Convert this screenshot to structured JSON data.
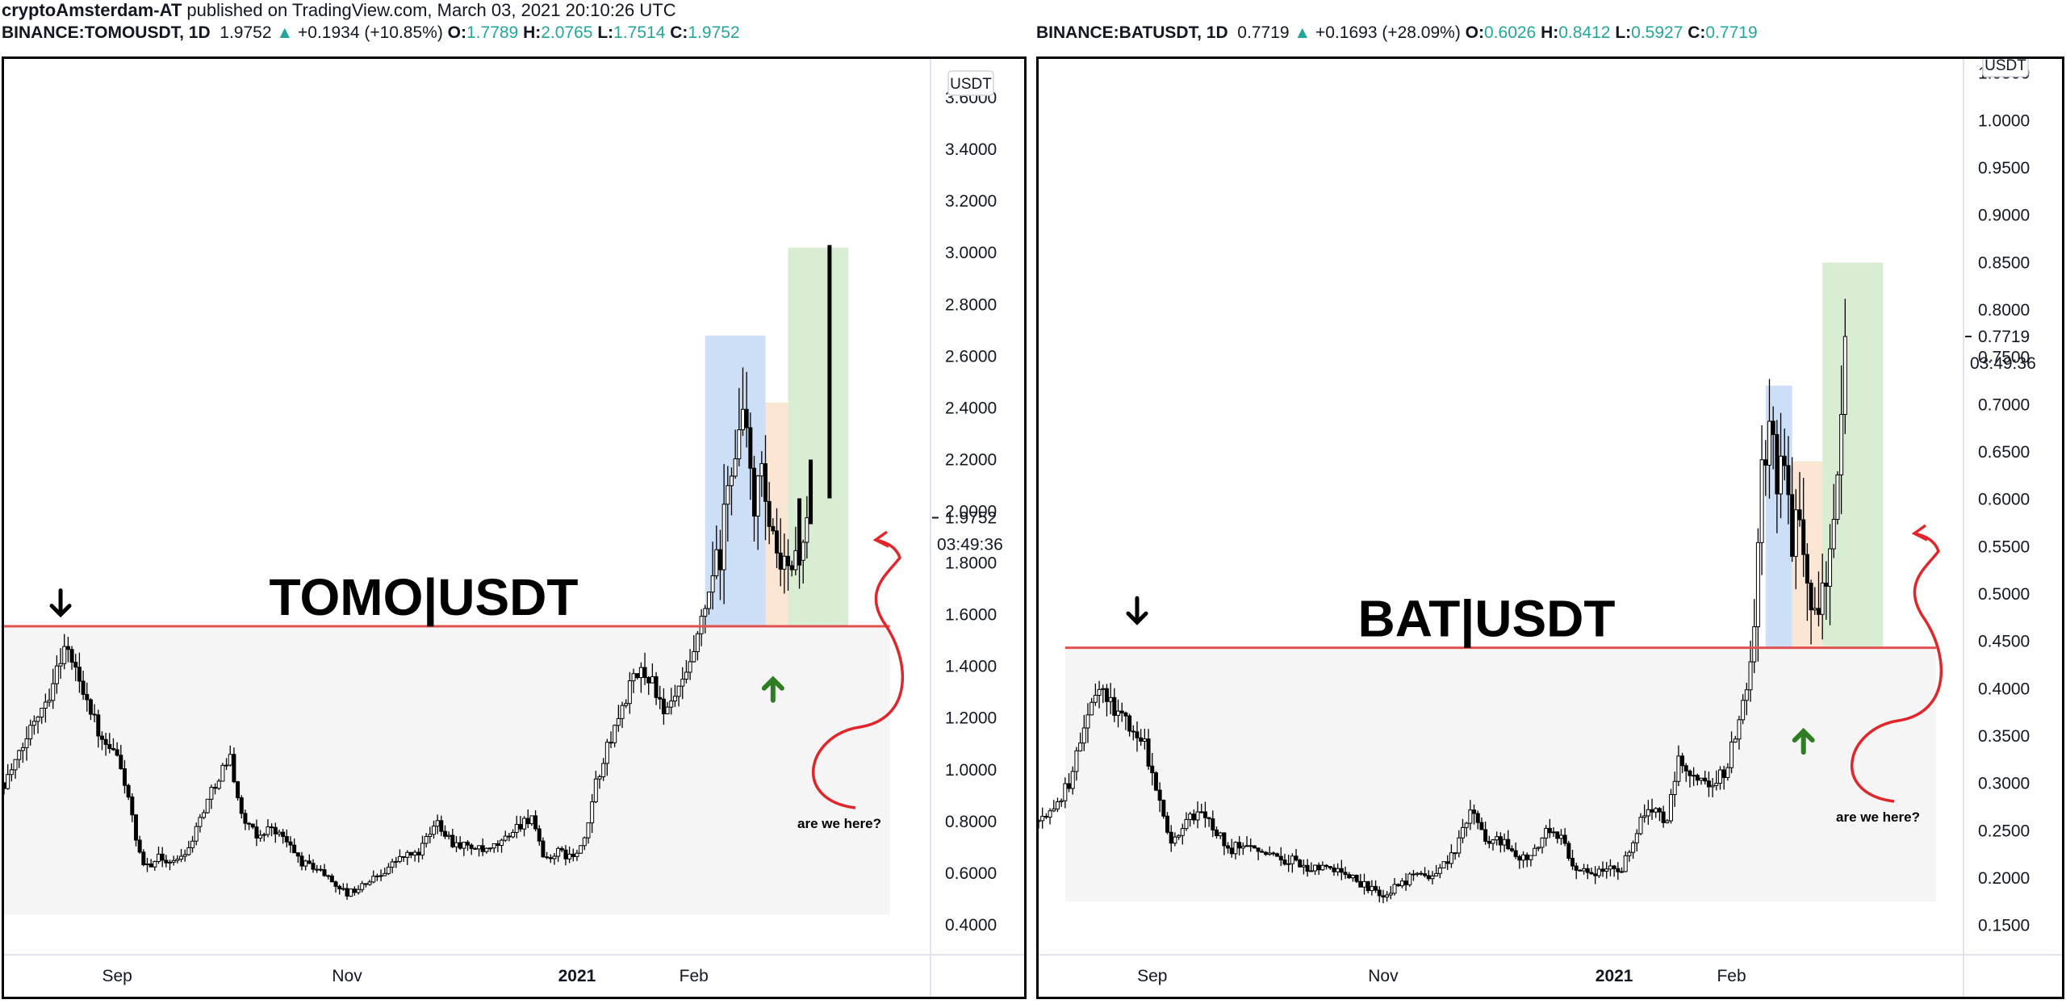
{
  "published_line": {
    "author": "cryptoAmsterdam-AT",
    "rest": " published on TradingView.com, March 03, 2021 20:10:26 UTC"
  },
  "chart_data": [
    {
      "type": "candlestick",
      "symbol": "BINANCE:TOMOUSDT, 1D",
      "header": {
        "last": "1.9752",
        "change": "+0.1934 (+10.85%)",
        "o": "1.7789",
        "h": "2.0765",
        "l": "1.7514",
        "c": "1.9752"
      },
      "title": "TOMO|USDT",
      "unit": "USDT",
      "ylim": [
        0.3,
        3.75
      ],
      "yticks": [
        "3.6000",
        "3.4000",
        "3.2000",
        "3.0000",
        "2.8000",
        "2.6000",
        "2.4000",
        "2.2000",
        "2.0000",
        "1.8000",
        "1.6000",
        "1.4000",
        "1.2000",
        "1.0000",
        "0.8000",
        "0.6000",
        "0.4000"
      ],
      "last_price_label": "1.9752",
      "countdown_label": "03:49:36",
      "xticks": [
        {
          "label": "Sep",
          "date": "2020-09-01",
          "bold": false
        },
        {
          "label": "Nov",
          "date": "2020-11-01",
          "bold": false
        },
        {
          "label": "2021",
          "date": "2021-01-01",
          "bold": true
        },
        {
          "label": "Feb",
          "date": "2021-02-01",
          "bold": false
        }
      ],
      "date_range": [
        "2020-08-02",
        "2021-03-30"
      ],
      "series_close": [
        [
          "2020-08-02",
          0.95
        ],
        [
          "2020-08-06",
          1.05
        ],
        [
          "2020-08-10",
          1.2
        ],
        [
          "2020-08-14",
          1.3
        ],
        [
          "2020-08-18",
          1.48
        ],
        [
          "2020-08-20",
          1.42
        ],
        [
          "2020-08-24",
          1.28
        ],
        [
          "2020-08-28",
          1.1
        ],
        [
          "2020-09-01",
          1.05
        ],
        [
          "2020-09-04",
          0.9
        ],
        [
          "2020-09-06",
          0.72
        ],
        [
          "2020-09-08",
          0.62
        ],
        [
          "2020-09-12",
          0.66
        ],
        [
          "2020-09-16",
          0.64
        ],
        [
          "2020-09-20",
          0.7
        ],
        [
          "2020-09-24",
          0.85
        ],
        [
          "2020-09-28",
          0.98
        ],
        [
          "2020-10-01",
          1.05
        ],
        [
          "2020-10-04",
          0.82
        ],
        [
          "2020-10-08",
          0.74
        ],
        [
          "2020-10-12",
          0.78
        ],
        [
          "2020-10-16",
          0.72
        ],
        [
          "2020-10-20",
          0.64
        ],
        [
          "2020-10-24",
          0.62
        ],
        [
          "2020-10-28",
          0.57
        ],
        [
          "2020-11-01",
          0.52
        ],
        [
          "2020-11-05",
          0.55
        ],
        [
          "2020-11-10",
          0.6
        ],
        [
          "2020-11-15",
          0.66
        ],
        [
          "2020-11-20",
          0.68
        ],
        [
          "2020-11-25",
          0.8
        ],
        [
          "2020-11-29",
          0.72
        ],
        [
          "2020-12-04",
          0.7
        ],
        [
          "2020-12-08",
          0.68
        ],
        [
          "2020-12-12",
          0.72
        ],
        [
          "2020-12-16",
          0.78
        ],
        [
          "2020-12-20",
          0.82
        ],
        [
          "2020-12-23",
          0.65
        ],
        [
          "2020-12-27",
          0.68
        ],
        [
          "2020-12-31",
          0.66
        ],
        [
          "2021-01-03",
          0.72
        ],
        [
          "2021-01-06",
          0.95
        ],
        [
          "2021-01-09",
          1.08
        ],
        [
          "2021-01-12",
          1.2
        ],
        [
          "2021-01-15",
          1.32
        ],
        [
          "2021-01-18",
          1.38
        ],
        [
          "2021-01-21",
          1.35
        ],
        [
          "2021-01-24",
          1.2
        ],
        [
          "2021-01-27",
          1.28
        ],
        [
          "2021-01-30",
          1.35
        ],
        [
          "2021-02-02",
          1.5
        ],
        [
          "2021-02-05",
          1.68
        ],
        [
          "2021-02-08",
          1.82
        ],
        [
          "2021-02-11",
          2.2
        ],
        [
          "2021-02-14",
          2.35
        ],
        [
          "2021-02-17",
          2.05
        ],
        [
          "2021-02-19",
          2.1
        ],
        [
          "2021-02-22",
          1.85
        ],
        [
          "2021-02-24",
          1.75
        ],
        [
          "2021-02-27",
          1.8
        ],
        [
          "2021-03-01",
          1.85
        ],
        [
          "2021-03-03",
          1.9752
        ]
      ],
      "resistance_level": 1.555,
      "shaded_zone": {
        "from": "2020-08-02",
        "to": "2021-03-25",
        "low": 0.44,
        "high": 1.555
      },
      "boxes": [
        {
          "color": "#c7dbf5",
          "from": "2021-02-04",
          "to": "2021-02-20",
          "low": 1.555,
          "high": 2.68
        },
        {
          "color": "#fbe3cf",
          "from": "2021-02-20",
          "to": "2021-02-26",
          "low": 1.555,
          "high": 2.42
        },
        {
          "color": "#d5ebce",
          "from": "2021-02-26",
          "to": "2021-03-14",
          "low": 1.555,
          "high": 3.02
        }
      ],
      "projected_bars": [
        {
          "date": "2021-03-01",
          "low": 1.79,
          "high": 2.05
        },
        {
          "date": "2021-03-04",
          "low": 1.95,
          "high": 2.2
        },
        {
          "date": "2021-03-09",
          "low": 2.05,
          "high": 3.03
        }
      ],
      "black_arrow": {
        "date": "2020-08-17",
        "value": 1.6
      },
      "green_arrow": {
        "date": "2021-02-22",
        "value": 1.35
      },
      "note": "are we here?"
    },
    {
      "type": "candlestick",
      "symbol": "BINANCE:BATUSDT, 1D",
      "header": {
        "last": "0.7719",
        "change": "+0.1693 (+28.09%)",
        "o": "0.6026",
        "h": "0.8412",
        "l": "0.5927",
        "c": "0.7719"
      },
      "title": "BAT|USDT",
      "unit": "USDT",
      "ylim": [
        0.125,
        1.065
      ],
      "yticks": [
        "1.0500",
        "1.0000",
        "0.9500",
        "0.9000",
        "0.8500",
        "0.8000",
        "0.7500",
        "0.7000",
        "0.6500",
        "0.6000",
        "0.5500",
        "0.5000",
        "0.4500",
        "0.4000",
        "0.3500",
        "0.3000",
        "0.2500",
        "0.2000",
        "0.1500"
      ],
      "last_price_label": "0.7719",
      "countdown_label": "03:49:36",
      "xticks": [
        {
          "label": "Sep",
          "date": "2020-09-01",
          "bold": false
        },
        {
          "label": "Nov",
          "date": "2020-11-01",
          "bold": false
        },
        {
          "label": "2021",
          "date": "2021-01-01",
          "bold": true
        },
        {
          "label": "Feb",
          "date": "2021-02-01",
          "bold": false
        }
      ],
      "date_range": [
        "2020-08-02",
        "2021-03-30"
      ],
      "series_close": [
        [
          "2020-08-02",
          0.26
        ],
        [
          "2020-08-06",
          0.27
        ],
        [
          "2020-08-10",
          0.3
        ],
        [
          "2020-08-14",
          0.36
        ],
        [
          "2020-08-18",
          0.4
        ],
        [
          "2020-08-22",
          0.38
        ],
        [
          "2020-08-26",
          0.36
        ],
        [
          "2020-08-30",
          0.34
        ],
        [
          "2020-09-03",
          0.28
        ],
        [
          "2020-09-06",
          0.24
        ],
        [
          "2020-09-10",
          0.26
        ],
        [
          "2020-09-14",
          0.27
        ],
        [
          "2020-09-18",
          0.25
        ],
        [
          "2020-09-22",
          0.23
        ],
        [
          "2020-09-26",
          0.24
        ],
        [
          "2020-09-30",
          0.23
        ],
        [
          "2020-10-04",
          0.22
        ],
        [
          "2020-10-08",
          0.22
        ],
        [
          "2020-10-12",
          0.21
        ],
        [
          "2020-10-16",
          0.21
        ],
        [
          "2020-10-20",
          0.21
        ],
        [
          "2020-10-24",
          0.2
        ],
        [
          "2020-10-28",
          0.19
        ],
        [
          "2020-11-01",
          0.18
        ],
        [
          "2020-11-04",
          0.19
        ],
        [
          "2020-11-08",
          0.2
        ],
        [
          "2020-11-12",
          0.2
        ],
        [
          "2020-11-16",
          0.21
        ],
        [
          "2020-11-20",
          0.23
        ],
        [
          "2020-11-24",
          0.27
        ],
        [
          "2020-11-28",
          0.24
        ],
        [
          "2020-12-02",
          0.24
        ],
        [
          "2020-12-06",
          0.22
        ],
        [
          "2020-12-10",
          0.22
        ],
        [
          "2020-12-14",
          0.25
        ],
        [
          "2020-12-18",
          0.24
        ],
        [
          "2020-12-22",
          0.21
        ],
        [
          "2020-12-26",
          0.2
        ],
        [
          "2020-12-30",
          0.21
        ],
        [
          "2021-01-03",
          0.21
        ],
        [
          "2021-01-06",
          0.24
        ],
        [
          "2021-01-09",
          0.27
        ],
        [
          "2021-01-12",
          0.27
        ],
        [
          "2021-01-15",
          0.26
        ],
        [
          "2021-01-18",
          0.33
        ],
        [
          "2021-01-21",
          0.31
        ],
        [
          "2021-01-24",
          0.3
        ],
        [
          "2021-01-27",
          0.3
        ],
        [
          "2021-01-30",
          0.31
        ],
        [
          "2021-02-02",
          0.35
        ],
        [
          "2021-02-05",
          0.4
        ],
        [
          "2021-02-07",
          0.45
        ],
        [
          "2021-02-09",
          0.62
        ],
        [
          "2021-02-11",
          0.68
        ],
        [
          "2021-02-13",
          0.6
        ],
        [
          "2021-02-15",
          0.64
        ],
        [
          "2021-02-17",
          0.55
        ],
        [
          "2021-02-19",
          0.6
        ],
        [
          "2021-02-21",
          0.52
        ],
        [
          "2021-02-23",
          0.47
        ],
        [
          "2021-02-25",
          0.5
        ],
        [
          "2021-02-27",
          0.55
        ],
        [
          "2021-03-01",
          0.6026
        ],
        [
          "2021-03-03",
          0.7719
        ]
      ],
      "resistance_level": 0.4432,
      "shaded_zone": {
        "from": "2020-08-09",
        "to": "2021-03-27",
        "low": 0.175,
        "high": 0.4432
      },
      "boxes": [
        {
          "color": "#c7dbf5",
          "from": "2021-02-10",
          "to": "2021-02-17",
          "low": 0.4432,
          "high": 0.72
        },
        {
          "color": "#fbe3cf",
          "from": "2021-02-17",
          "to": "2021-02-25",
          "low": 0.4432,
          "high": 0.64
        },
        {
          "color": "#d5ebce",
          "from": "2021-02-25",
          "to": "2021-03-13",
          "low": 0.4432,
          "high": 0.85
        }
      ],
      "projected_bars": [],
      "black_arrow": {
        "date": "2020-08-28",
        "value": 0.47
      },
      "green_arrow": {
        "date": "2021-02-20",
        "value": 0.355
      },
      "note": "are we here?"
    }
  ]
}
